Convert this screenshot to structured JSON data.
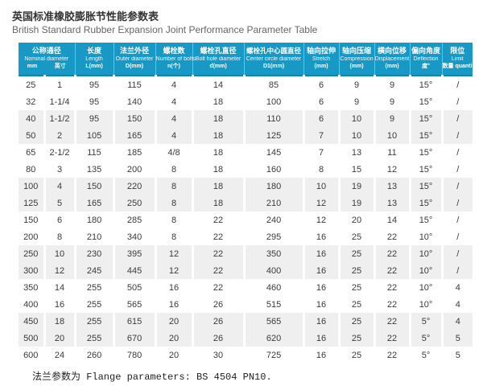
{
  "page": {
    "title_cn": "英国标准橡胶膨胀节性能参数表",
    "title_en": "British Standard Rubber Expansion Joint Performance Parameter Table",
    "footer_note": "法兰参数为 Flange parameters: BS 4504 PN10."
  },
  "colors": {
    "header_bg": "#1898c5",
    "header_border": "#0f86ae",
    "row_alt_bg": "#efefef",
    "header_text": "#ffffff",
    "body_text": "#3a3a3a"
  },
  "table": {
    "columns": [
      {
        "cn": "公称通径",
        "en": "Nominal diameter",
        "unit_mm": "mm",
        "unit_inch": "英寸"
      },
      {
        "cn": "长度",
        "en": "Length",
        "unit": "L(mm)"
      },
      {
        "cn": "法兰外径",
        "en": "Outer diameter",
        "unit": "D(mm)"
      },
      {
        "cn": "螺栓数",
        "en": "Number of bolts",
        "unit": "n(个)"
      },
      {
        "cn": "螺栓孔直径",
        "en": "Bolt hole diameter",
        "unit": "d(mm)"
      },
      {
        "cn": "螺栓孔中心圆直径",
        "en": "Center circle diameter",
        "unit": "D1(mm)"
      },
      {
        "cn": "轴向拉伸",
        "en": "Stretch",
        "unit": "(mm)"
      },
      {
        "cn": "轴向压缩",
        "en": "Compression",
        "unit": "(mm)"
      },
      {
        "cn": "横向位移",
        "en": "Displacement",
        "unit": "(mm)"
      },
      {
        "cn": "偏向角度",
        "en": "Deflection",
        "unit": "度°"
      },
      {
        "cn": "限位",
        "en": "Limit",
        "unit": "数量 quantity"
      }
    ],
    "rows": [
      [
        "25",
        "1",
        "95",
        "115",
        "4",
        "14",
        "85",
        "6",
        "9",
        "9",
        "15°",
        "/"
      ],
      [
        "32",
        "1-1/4",
        "95",
        "140",
        "4",
        "18",
        "100",
        "6",
        "9",
        "9",
        "15°",
        "/"
      ],
      [
        "40",
        "1-1/2",
        "95",
        "150",
        "4",
        "18",
        "110",
        "6",
        "10",
        "9",
        "15°",
        "/"
      ],
      [
        "50",
        "2",
        "105",
        "165",
        "4",
        "18",
        "125",
        "7",
        "10",
        "10",
        "15°",
        "/"
      ],
      [
        "65",
        "2-1/2",
        "115",
        "185",
        "4/8",
        "18",
        "145",
        "7",
        "13",
        "11",
        "15°",
        "/"
      ],
      [
        "80",
        "3",
        "135",
        "200",
        "8",
        "18",
        "160",
        "8",
        "15",
        "12",
        "15°",
        "/"
      ],
      [
        "100",
        "4",
        "150",
        "220",
        "8",
        "18",
        "180",
        "10",
        "19",
        "13",
        "15°",
        "/"
      ],
      [
        "125",
        "5",
        "165",
        "250",
        "8",
        "18",
        "210",
        "12",
        "19",
        "13",
        "15°",
        "/"
      ],
      [
        "150",
        "6",
        "180",
        "285",
        "8",
        "22",
        "240",
        "12",
        "20",
        "14",
        "15°",
        "/"
      ],
      [
        "200",
        "8",
        "210",
        "340",
        "8",
        "22",
        "295",
        "16",
        "25",
        "22",
        "10°",
        "/"
      ],
      [
        "250",
        "10",
        "230",
        "395",
        "12",
        "22",
        "350",
        "16",
        "25",
        "22",
        "10°",
        "/"
      ],
      [
        "300",
        "12",
        "245",
        "445",
        "12",
        "22",
        "400",
        "16",
        "25",
        "22",
        "10°",
        "/"
      ],
      [
        "350",
        "14",
        "255",
        "505",
        "16",
        "22",
        "460",
        "16",
        "25",
        "22",
        "10°",
        "4"
      ],
      [
        "400",
        "16",
        "255",
        "565",
        "16",
        "26",
        "515",
        "16",
        "25",
        "22",
        "10°",
        "4"
      ],
      [
        "450",
        "18",
        "255",
        "615",
        "20",
        "26",
        "565",
        "16",
        "25",
        "22",
        "5°",
        "4"
      ],
      [
        "500",
        "20",
        "255",
        "670",
        "20",
        "26",
        "620",
        "16",
        "25",
        "22",
        "5°",
        "5"
      ],
      [
        "600",
        "24",
        "260",
        "780",
        "20",
        "30",
        "725",
        "16",
        "25",
        "22",
        "5°",
        "5"
      ]
    ]
  }
}
